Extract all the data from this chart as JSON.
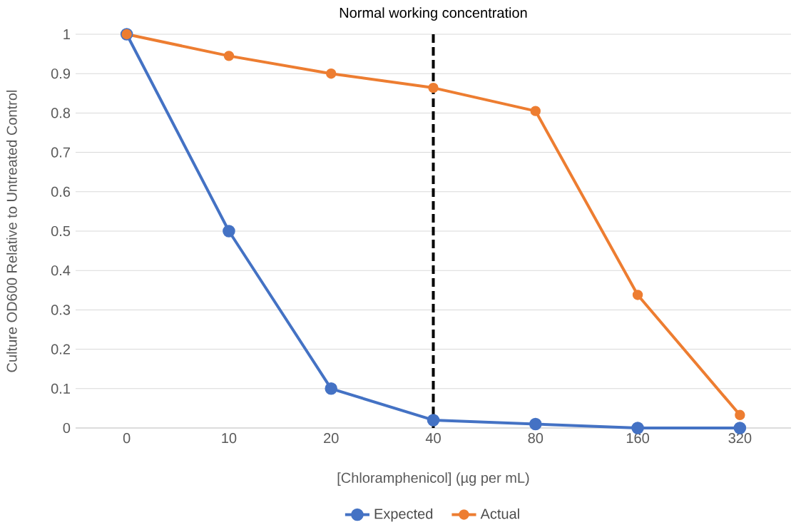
{
  "chart_data": {
    "type": "line",
    "xlabel": "[Chloramphenicol] (µg per mL)",
    "ylabel": "Culture OD600 Relative to Untreated Control",
    "categories": [
      "0",
      "10",
      "20",
      "40",
      "80",
      "160",
      "320"
    ],
    "series": [
      {
        "name": "Expected",
        "color": "#4472c4",
        "values": [
          1,
          0.5,
          0.1,
          0.02,
          0.01,
          0,
          0
        ]
      },
      {
        "name": "Actual",
        "color": "#ed7d31",
        "values": [
          1,
          0.945,
          0.9,
          0.864,
          0.805,
          0.338,
          0.033
        ]
      }
    ],
    "ylim": [
      0,
      1
    ],
    "yticks": [
      0,
      0.1,
      0.2,
      0.3,
      0.4,
      0.5,
      0.6,
      0.7,
      0.8,
      0.9,
      1
    ],
    "ref_lines": [
      {
        "axis": "x",
        "value": "40",
        "label": "Normal working concentration",
        "color": "#000000",
        "line_style": "dashed"
      }
    ],
    "grid": "y",
    "legend": "bottom",
    "marker": "circle",
    "line_style": "solid"
  }
}
